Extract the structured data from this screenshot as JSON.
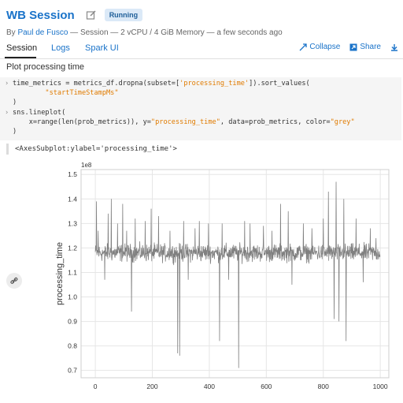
{
  "header": {
    "title": "WB Session",
    "status": "Running",
    "author": "Paul de Fusco",
    "meta_rest": " — Session — 2 vCPU / 4 GiB Memory — a few seconds ago",
    "meta_by": "By "
  },
  "tabs": [
    {
      "label": "Session"
    },
    {
      "label": "Logs"
    },
    {
      "label": "Spark UI"
    }
  ],
  "actions": {
    "collapse": "Collapse",
    "share": "Share"
  },
  "section_title": "Plot processing time",
  "code": {
    "lines": [
      "time_metrics = metrics_df.dropna(subset=['processing_time']).sort_values(",
      "    \"startTimeStampMs\"",
      ")",
      "sns.lineplot(",
      "    x=range(len(prob_metrics)), y=\"processing_time\", data=prob_metrics, color=\"grey\"",
      ")"
    ]
  },
  "output": "<AxesSubplot:ylabel='processing_time'>",
  "colors": {
    "accent": "#1a73c9",
    "line": "#808080",
    "grid": "#e6e6e6"
  },
  "chart_data": {
    "type": "line",
    "ylabel": "processing_time",
    "scale_label": "1e8",
    "xlim": [
      -50,
      1030
    ],
    "ylim": [
      0.67,
      1.52
    ],
    "xticks": [
      "0",
      "200",
      "400",
      "600",
      "800",
      "1000"
    ],
    "yticks": [
      "0.7",
      "0.8",
      "0.9",
      "1.0",
      "1.1",
      "1.2",
      "1.3",
      "1.4",
      "1.5"
    ],
    "grid": true,
    "n_points": 1000,
    "baseline": 1.18,
    "noise": 0.035,
    "spikes": [
      {
        "x": 4,
        "y": 1.39
      },
      {
        "x": 10,
        "y": 1.27
      },
      {
        "x": 33,
        "y": 1.07
      },
      {
        "x": 45,
        "y": 1.34
      },
      {
        "x": 56,
        "y": 1.4
      },
      {
        "x": 78,
        "y": 1.3
      },
      {
        "x": 96,
        "y": 1.38
      },
      {
        "x": 110,
        "y": 1.27
      },
      {
        "x": 127,
        "y": 0.94
      },
      {
        "x": 140,
        "y": 1.32
      },
      {
        "x": 175,
        "y": 1.31
      },
      {
        "x": 196,
        "y": 1.36
      },
      {
        "x": 222,
        "y": 1.33
      },
      {
        "x": 262,
        "y": 1.27
      },
      {
        "x": 289,
        "y": 0.77
      },
      {
        "x": 296,
        "y": 0.76
      },
      {
        "x": 310,
        "y": 1.31
      },
      {
        "x": 326,
        "y": 1.07
      },
      {
        "x": 350,
        "y": 1.28
      },
      {
        "x": 365,
        "y": 1.31
      },
      {
        "x": 397,
        "y": 1.3
      },
      {
        "x": 436,
        "y": 0.82
      },
      {
        "x": 445,
        "y": 1.3
      },
      {
        "x": 468,
        "y": 1.07
      },
      {
        "x": 503,
        "y": 0.71
      },
      {
        "x": 524,
        "y": 1.31
      },
      {
        "x": 543,
        "y": 1.3
      },
      {
        "x": 590,
        "y": 1.29
      },
      {
        "x": 620,
        "y": 1.27
      },
      {
        "x": 650,
        "y": 1.38
      },
      {
        "x": 677,
        "y": 1.35
      },
      {
        "x": 690,
        "y": 1.05
      },
      {
        "x": 730,
        "y": 1.3
      },
      {
        "x": 760,
        "y": 1.28
      },
      {
        "x": 800,
        "y": 1.32
      },
      {
        "x": 818,
        "y": 1.43
      },
      {
        "x": 838,
        "y": 0.91
      },
      {
        "x": 845,
        "y": 1.47
      },
      {
        "x": 855,
        "y": 0.9
      },
      {
        "x": 872,
        "y": 1.4
      },
      {
        "x": 880,
        "y": 0.82
      },
      {
        "x": 915,
        "y": 1.32
      },
      {
        "x": 940,
        "y": 1.06
      },
      {
        "x": 965,
        "y": 1.28
      },
      {
        "x": 985,
        "y": 1.24
      }
    ]
  }
}
